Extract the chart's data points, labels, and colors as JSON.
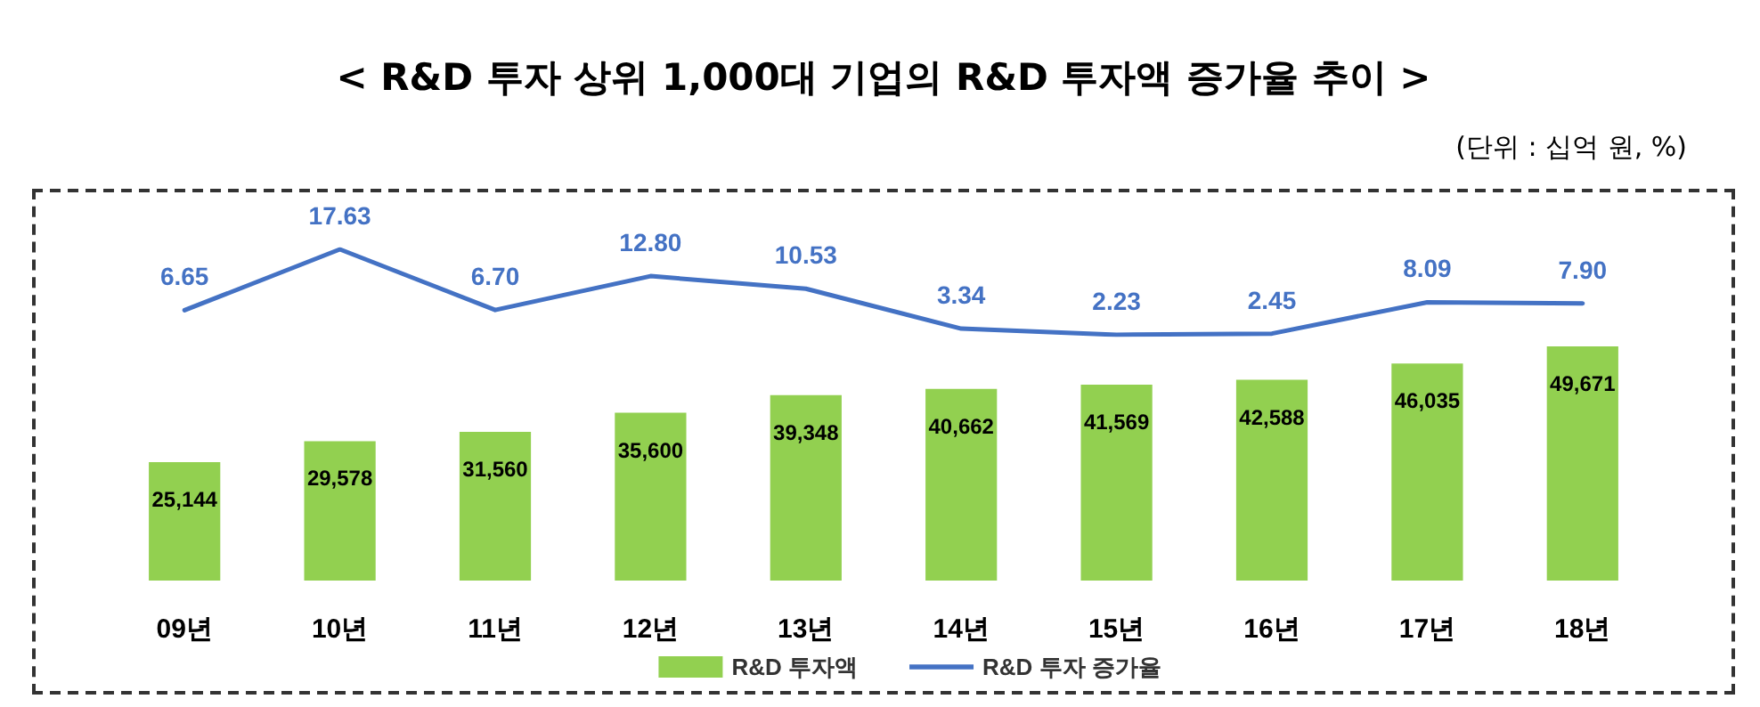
{
  "chart_data": [
    {
      "type": "bar",
      "categories": [
        "09년",
        "10년",
        "11년",
        "12년",
        "13년",
        "14년",
        "15년",
        "16년",
        "17년",
        "18년"
      ],
      "series": [
        {
          "name": "R&D 투자액",
          "color": "#92d050",
          "values": [
            25144,
            29578,
            31560,
            35600,
            39348,
            40662,
            41569,
            42588,
            46035,
            49671
          ],
          "value_labels": [
            "25,144",
            "29,578",
            "31,560",
            "35,600",
            "39,348",
            "40,662",
            "41,569",
            "42,588",
            "46,035",
            "49,671"
          ]
        }
      ],
      "tick_labels": "x",
      "legend": "bottom"
    },
    {
      "type": "line",
      "title": "< R&D 투자 상위 1,000대 기업의 R&D 투자액 증가율 추이 >",
      "subtitle": "(단위 : 십억 원, %)",
      "categories": [
        null,
        null,
        null,
        null,
        null,
        null,
        null,
        null,
        null,
        null
      ],
      "series": [
        {
          "name": "R&D 투자 증가율",
          "color": "#4472c4",
          "values": [
            6.65,
            17.63,
            6.7,
            12.8,
            10.53,
            3.34,
            2.23,
            2.45,
            8.09,
            7.9
          ],
          "value_labels": [
            "6.65",
            "17.63",
            "6.70",
            "12.80",
            "10.53",
            "3.34",
            "2.23",
            "2.45",
            "8.09",
            "7.90"
          ]
        }
      ],
      "tick_labels": false,
      "legend": "bottom",
      "marker": "none"
    }
  ]
}
